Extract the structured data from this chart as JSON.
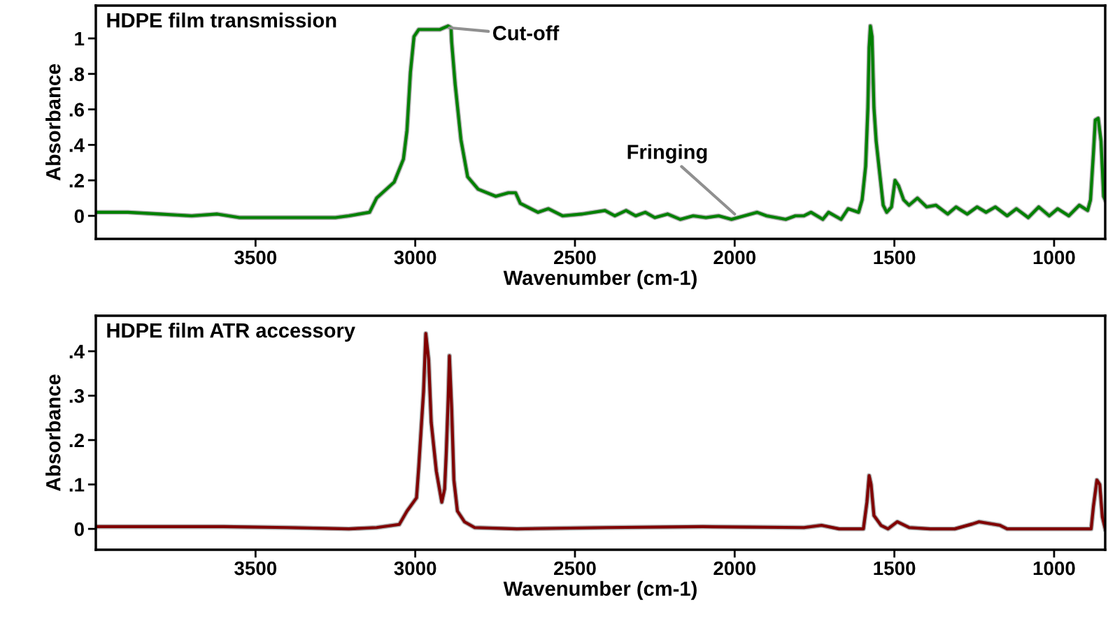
{
  "chart_data": [
    {
      "type": "line",
      "title": "HDPE film transmission",
      "xlabel": "Wavenumber (cm-1)",
      "ylabel": "Absorbance",
      "xlim": [
        4000,
        840
      ],
      "xticks": [
        3500,
        3000,
        2500,
        2000,
        1500,
        1000
      ],
      "ylim": [
        -0.13,
        1.185
      ],
      "yticks": [
        {
          "value": 0,
          "label": "0"
        },
        {
          "value": 0.2,
          "label": ".2"
        },
        {
          "value": 0.4,
          "label": ".4"
        },
        {
          "value": 0.6,
          "label": ".6"
        },
        {
          "value": 0.8,
          "label": ".8"
        },
        {
          "value": 1,
          "label": "1"
        }
      ],
      "grid": false,
      "legend": false,
      "annotations": [
        {
          "text": "Cut-off",
          "x": 2893,
          "y": 1.06
        },
        {
          "text": "Fringing",
          "x": 2000,
          "y": 0.01
        }
      ],
      "series": [
        {
          "color": "#008000",
          "x": [
            4000,
            3900,
            3800,
            3700,
            3620,
            3550,
            3450,
            3350,
            3250,
            3208,
            3143,
            3121,
            3066,
            3037,
            3026,
            3015,
            3004,
            2989,
            2923,
            2897,
            2888,
            2886,
            2875,
            2857,
            2836,
            2803,
            2748,
            2708,
            2686,
            2671,
            2616,
            2583,
            2539,
            2478,
            2406,
            2375,
            2340,
            2310,
            2280,
            2250,
            2210,
            2170,
            2130,
            2090,
            2050,
            2010,
            1970,
            1930,
            1900,
            1870,
            1840,
            1810,
            1783,
            1761,
            1724,
            1706,
            1667,
            1645,
            1612,
            1601,
            1590,
            1583,
            1579,
            1575,
            1570,
            1564,
            1557,
            1546,
            1535,
            1524,
            1509,
            1498,
            1487,
            1471,
            1454,
            1428,
            1399,
            1370,
            1333,
            1307,
            1272,
            1241,
            1213,
            1184,
            1147,
            1118,
            1081,
            1048,
            1015,
            989,
            954,
            921,
            895,
            886,
            877,
            871,
            862,
            853,
            845,
            840
          ],
          "values": [
            0.02,
            0.02,
            0.01,
            0.0,
            0.01,
            -0.01,
            -0.01,
            -0.01,
            -0.01,
            0.0,
            0.02,
            0.1,
            0.19,
            0.32,
            0.48,
            0.81,
            1.01,
            1.05,
            1.05,
            1.07,
            1.06,
            0.98,
            0.74,
            0.43,
            0.22,
            0.15,
            0.11,
            0.13,
            0.13,
            0.07,
            0.02,
            0.04,
            0.0,
            0.01,
            0.03,
            0.0,
            0.03,
            0.0,
            0.02,
            -0.01,
            0.01,
            -0.02,
            0.0,
            -0.01,
            0.0,
            -0.02,
            0.0,
            0.02,
            0.0,
            -0.01,
            -0.02,
            0.0,
            0.0,
            0.02,
            -0.02,
            0.02,
            -0.02,
            0.04,
            0.02,
            0.09,
            0.28,
            0.61,
            0.95,
            1.07,
            1.01,
            0.61,
            0.42,
            0.24,
            0.06,
            0.02,
            0.05,
            0.2,
            0.17,
            0.09,
            0.06,
            0.1,
            0.05,
            0.06,
            0.01,
            0.05,
            0.01,
            0.05,
            0.02,
            0.05,
            0.0,
            0.04,
            -0.01,
            0.05,
            0.0,
            0.04,
            0.0,
            0.06,
            0.03,
            0.09,
            0.35,
            0.54,
            0.55,
            0.42,
            0.11,
            0.09
          ]
        }
      ]
    },
    {
      "type": "line",
      "title": "HDPE film ATR accessory",
      "xlabel": "Wavenumber (cm-1)",
      "ylabel": "Absorbance",
      "xlim": [
        4000,
        840
      ],
      "xticks": [
        3500,
        3000,
        2500,
        2000,
        1500,
        1000
      ],
      "ylim": [
        -0.047,
        0.48
      ],
      "yticks": [
        {
          "value": 0,
          "label": "0"
        },
        {
          "value": 0.1,
          "label": ".1"
        },
        {
          "value": 0.2,
          "label": ".2"
        },
        {
          "value": 0.3,
          "label": ".3"
        },
        {
          "value": 0.4,
          "label": ".4"
        }
      ],
      "grid": false,
      "legend": false,
      "series": [
        {
          "color": "#800000",
          "x": [
            4000,
            3800,
            3600,
            3400,
            3208,
            3121,
            3050,
            3026,
            2996,
            2989,
            2982,
            2974,
            2967,
            2958,
            2950,
            2934,
            2917,
            2908,
            2903,
            2897,
            2893,
            2886,
            2879,
            2868,
            2846,
            2814,
            2682,
            2400,
            2100,
            1783,
            1728,
            1673,
            1597,
            1586,
            1579,
            1573,
            1564,
            1542,
            1520,
            1491,
            1454,
            1388,
            1311,
            1256,
            1235,
            1169,
            1147,
            1015,
            884,
            877,
            866,
            857,
            849,
            840
          ],
          "values": [
            0.005,
            0.005,
            0.005,
            0.003,
            0.0,
            0.003,
            0.01,
            0.04,
            0.07,
            0.14,
            0.22,
            0.31,
            0.44,
            0.38,
            0.24,
            0.13,
            0.06,
            0.09,
            0.17,
            0.29,
            0.39,
            0.27,
            0.11,
            0.04,
            0.016,
            0.003,
            0.0,
            0.003,
            0.005,
            0.003,
            0.008,
            0.0,
            0.0,
            0.06,
            0.12,
            0.1,
            0.03,
            0.008,
            0.0,
            0.016,
            0.003,
            0.0,
            0.0,
            0.011,
            0.016,
            0.008,
            0.0,
            0.0,
            0.0,
            0.05,
            0.11,
            0.1,
            0.027,
            0.0
          ]
        }
      ]
    }
  ]
}
